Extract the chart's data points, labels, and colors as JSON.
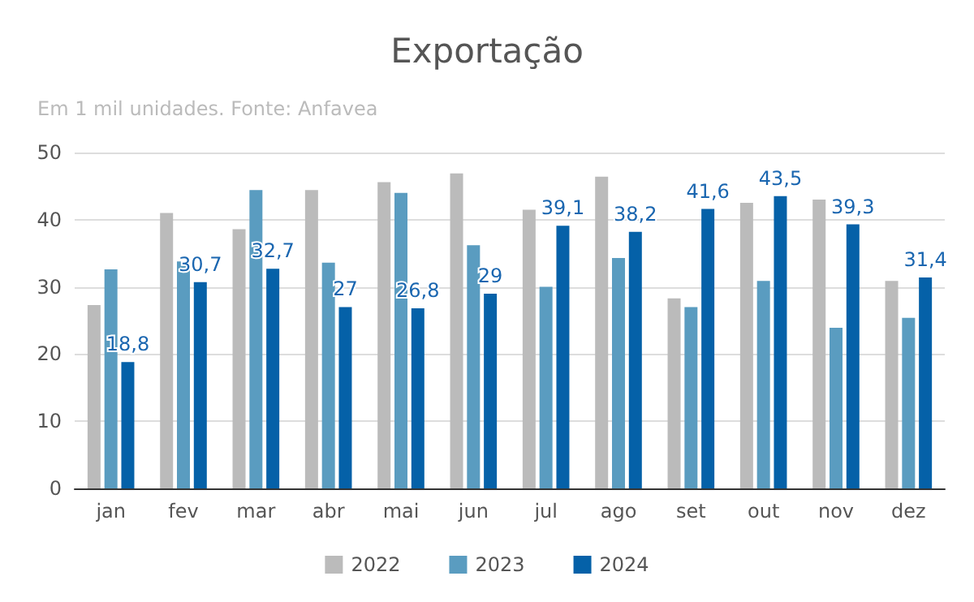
{
  "chart_data": {
    "type": "bar",
    "title": "Exportação",
    "subtitle": "Em 1 mil unidades. Fonte: Anfavea",
    "categories": [
      "jan",
      "fev",
      "mar",
      "abr",
      "mai",
      "jun",
      "jul",
      "ago",
      "set",
      "out",
      "nov",
      "dez"
    ],
    "series": [
      {
        "name": "2022",
        "color": "#bbbbbb",
        "values": [
          27.3,
          41,
          38.6,
          44.4,
          45.6,
          46.9,
          41.5,
          46.4,
          28.3,
          42.5,
          43,
          30.9
        ]
      },
      {
        "name": "2023",
        "color": "#5a9cc0",
        "values": [
          32.6,
          33.8,
          44.4,
          33.6,
          44,
          36.2,
          30,
          34.3,
          27,
          30.9,
          23.9,
          25.4
        ]
      },
      {
        "name": "2024",
        "color": "#0561a8",
        "values": [
          18.8,
          30.7,
          32.7,
          27,
          26.8,
          29,
          39.1,
          38.2,
          41.6,
          43.5,
          39.3,
          31.4
        ],
        "value_labels": [
          "18,8",
          "30,7",
          "32,7",
          "27",
          "26,8",
          "29",
          "39,1",
          "38,2",
          "41,6",
          "43,5",
          "39,3",
          "31,4"
        ]
      }
    ],
    "ylim": [
      0,
      50
    ],
    "yticks": [
      0,
      10,
      20,
      30,
      40,
      50
    ],
    "grid": "y",
    "legend": "bottom"
  }
}
